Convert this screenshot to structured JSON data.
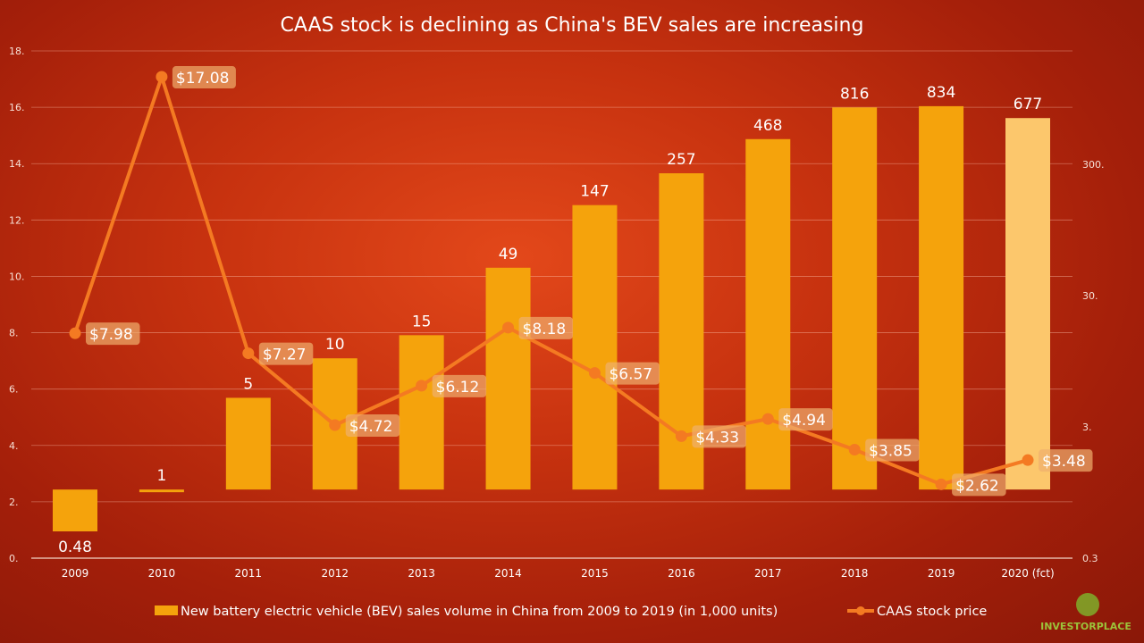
{
  "chart_data": {
    "type": "bar+line",
    "title": "CAAS stock is declining as China's BEV sales are increasing",
    "categories": [
      "2009",
      "2010",
      "2011",
      "2012",
      "2013",
      "2014",
      "2015",
      "2016",
      "2017",
      "2018",
      "2019",
      "2020 (fct)"
    ],
    "series": [
      {
        "name": "New battery electric vehicle (BEV) sales volume in China from 2009 to 2019 (in 1,000 units)",
        "type": "bar",
        "axis": "right",
        "values": [
          0.48,
          1,
          5,
          10,
          15,
          49,
          147,
          257,
          468,
          816,
          834,
          677
        ],
        "labels": [
          "0.48",
          "1",
          "5",
          "10",
          "15",
          "49",
          "147",
          "257",
          "468",
          "816",
          "834",
          "677"
        ],
        "color": "#f5a30c",
        "forecast_color": "#fcc76c"
      },
      {
        "name": "CAAS stock price",
        "type": "line",
        "axis": "left",
        "values": [
          7.98,
          17.08,
          7.27,
          4.72,
          6.12,
          8.18,
          6.57,
          4.33,
          4.94,
          3.85,
          2.62,
          3.48
        ],
        "labels": [
          "$7.98",
          "$17.08",
          "$7.27",
          "$4.72",
          "$6.12",
          "$8.18",
          "$6.57",
          "$4.33",
          "$4.94",
          "$3.85",
          "$2.62",
          "$3.48"
        ],
        "color": "#f47a22"
      }
    ],
    "left_axis": {
      "ylim": [
        0,
        18
      ],
      "ticks": [
        "0.",
        "2.",
        "4.",
        "6.",
        "8.",
        "10.",
        "12.",
        "14.",
        "16.",
        "18."
      ],
      "tick_values": [
        0,
        2,
        4,
        6,
        8,
        10,
        12,
        14,
        16,
        18
      ]
    },
    "right_axis": {
      "scale": "log",
      "ylim": [
        0.3,
        2200
      ],
      "ticks": [
        "0.3",
        "3.",
        "30.",
        "300."
      ],
      "tick_values": [
        0.3,
        3,
        30,
        300
      ]
    },
    "grid": true,
    "legend_position": "bottom"
  },
  "logo": {
    "text": "INVESTORPLACE"
  }
}
